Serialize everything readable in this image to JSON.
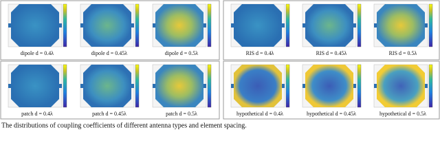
{
  "figure": {
    "panels": [
      {
        "label": "dipole d = 0.4λ"
      },
      {
        "label": "dipole d = 0.45λ"
      },
      {
        "label": "dipole d = 0.5λ"
      },
      {
        "label": "RIS d = 0.4λ"
      },
      {
        "label": "RIS d = 0.45λ"
      },
      {
        "label": "RIS d = 0.5λ"
      },
      {
        "label": "patch d = 0.4λ"
      },
      {
        "label": "patch d = 0.45λ"
      },
      {
        "label": "patch d = 0.5λ"
      },
      {
        "label": "hypothetical d = 0.4λ"
      },
      {
        "label": "hypothetical d = 0.45λ"
      },
      {
        "label": "hypothetical d = 0.5λ"
      }
    ],
    "caption": "The distributions of coupling coefficients of different antenna types and element spacing."
  }
}
